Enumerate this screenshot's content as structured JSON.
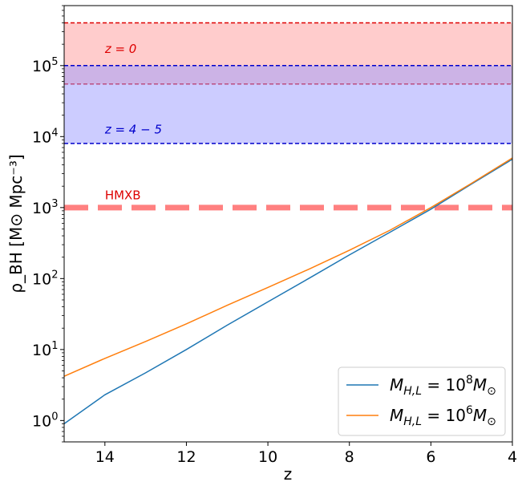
{
  "chart_data": {
    "type": "line",
    "xlabel": "z",
    "ylabel": "ρ_BH [M⊙ Mpc⁻³]",
    "xlim": [
      15,
      4
    ],
    "ylim": [
      0.5,
      700000
    ],
    "yscale": "log",
    "x_ticks": [
      {
        "value": 14,
        "label": "14"
      },
      {
        "value": 12,
        "label": "12"
      },
      {
        "value": 10,
        "label": "10"
      },
      {
        "value": 8,
        "label": "8"
      },
      {
        "value": 6,
        "label": "6"
      },
      {
        "value": 4,
        "label": "4"
      }
    ],
    "y_ticks": [
      {
        "value": 1,
        "base": "10",
        "exp": "0"
      },
      {
        "value": 10,
        "base": "10",
        "exp": "1"
      },
      {
        "value": 100,
        "base": "10",
        "exp": "2"
      },
      {
        "value": 1000,
        "base": "10",
        "exp": "3"
      },
      {
        "value": 10000,
        "base": "10",
        "exp": "4"
      },
      {
        "value": 100000,
        "base": "10",
        "exp": "5"
      }
    ],
    "bands": [
      {
        "lower": 55000,
        "upper": 400000,
        "fill": "#ff9999",
        "line_color": "#dd0000",
        "label": "z = 0",
        "label_color": "#dd0000",
        "label_x": 14,
        "label_y": 150000
      },
      {
        "lower": 8000,
        "upper": 100000,
        "fill": "#9999ff",
        "line_color": "#0000cc",
        "label": "z = 4 − 5",
        "label_color": "#0000cc",
        "label_x": 14,
        "label_y": 11000
      }
    ],
    "hline": {
      "value": 1000,
      "color": "#ff8080",
      "label": "HMXB",
      "label_color": "#dd0000",
      "label_x": 14,
      "label_y": 1300
    },
    "series": [
      {
        "name": "M_{H,L} = 10^8 M⊙",
        "legend_main": "M",
        "legend_sub": "H,L",
        "legend_exp": "8",
        "color": "#1f77b4",
        "x": [
          15,
          14,
          13,
          12,
          11,
          10,
          9,
          8,
          7,
          6,
          5,
          4
        ],
        "y": [
          0.9,
          2.3,
          4.7,
          10,
          22,
          47,
          100,
          215,
          450,
          950,
          2150,
          4800
        ]
      },
      {
        "name": "M_{H,L} = 10^6 M⊙",
        "legend_main": "M",
        "legend_sub": "H,L",
        "legend_exp": "6",
        "color": "#ff7f0e",
        "x": [
          15,
          14,
          13,
          12,
          11,
          10,
          9,
          8,
          7,
          6,
          5,
          4
        ],
        "y": [
          4.2,
          7.5,
          13,
          23,
          42,
          75,
          135,
          250,
          480,
          1000,
          2200,
          5000
        ]
      }
    ],
    "legend_position": "lower-right"
  }
}
